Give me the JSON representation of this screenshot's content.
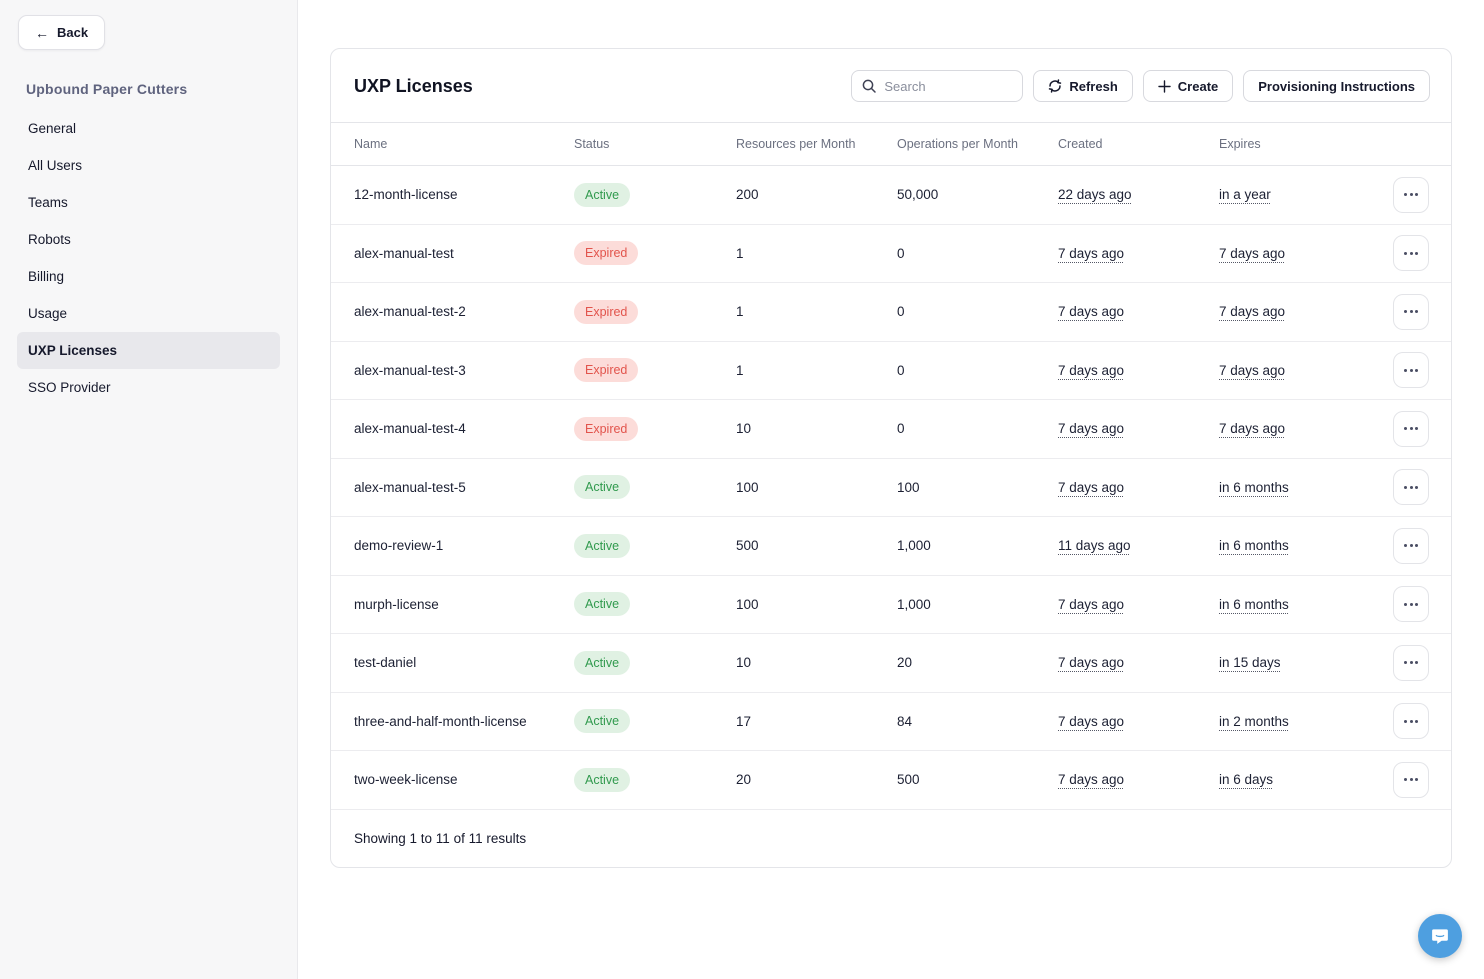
{
  "sidebar": {
    "back_label": "Back",
    "org_name": "Upbound Paper Cutters",
    "items": [
      {
        "label": "General",
        "active": false
      },
      {
        "label": "All Users",
        "active": false
      },
      {
        "label": "Teams",
        "active": false
      },
      {
        "label": "Robots",
        "active": false
      },
      {
        "label": "Billing",
        "active": false
      },
      {
        "label": "Usage",
        "active": false
      },
      {
        "label": "UXP Licenses",
        "active": true
      },
      {
        "label": "SSO Provider",
        "active": false
      }
    ]
  },
  "main": {
    "title": "UXP Licenses",
    "search": {
      "placeholder": "Search",
      "value": ""
    },
    "buttons": {
      "refresh": "Refresh",
      "create": "Create",
      "provisioning": "Provisioning Instructions"
    },
    "table": {
      "columns": [
        "Name",
        "Status",
        "Resources per Month",
        "Operations per Month",
        "Created",
        "Expires"
      ],
      "rows": [
        {
          "name": "12-month-license",
          "status": "Active",
          "resources": "200",
          "operations": "50,000",
          "created": "22 days ago",
          "expires": "in a year"
        },
        {
          "name": "alex-manual-test",
          "status": "Expired",
          "resources": "1",
          "operations": "0",
          "created": "7 days ago",
          "expires": "7 days ago"
        },
        {
          "name": "alex-manual-test-2",
          "status": "Expired",
          "resources": "1",
          "operations": "0",
          "created": "7 days ago",
          "expires": "7 days ago"
        },
        {
          "name": "alex-manual-test-3",
          "status": "Expired",
          "resources": "1",
          "operations": "0",
          "created": "7 days ago",
          "expires": "7 days ago"
        },
        {
          "name": "alex-manual-test-4",
          "status": "Expired",
          "resources": "10",
          "operations": "0",
          "created": "7 days ago",
          "expires": "7 days ago"
        },
        {
          "name": "alex-manual-test-5",
          "status": "Active",
          "resources": "100",
          "operations": "100",
          "created": "7 days ago",
          "expires": "in 6 months"
        },
        {
          "name": "demo-review-1",
          "status": "Active",
          "resources": "500",
          "operations": "1,000",
          "created": "11 days ago",
          "expires": "in 6 months"
        },
        {
          "name": "murph-license",
          "status": "Active",
          "resources": "100",
          "operations": "1,000",
          "created": "7 days ago",
          "expires": "in 6 months"
        },
        {
          "name": "test-daniel",
          "status": "Active",
          "resources": "10",
          "operations": "20",
          "created": "7 days ago",
          "expires": "in 15 days"
        },
        {
          "name": "three-and-half-month-license",
          "status": "Active",
          "resources": "17",
          "operations": "84",
          "created": "7 days ago",
          "expires": "in 2 months"
        },
        {
          "name": "two-week-license",
          "status": "Active",
          "resources": "20",
          "operations": "500",
          "created": "7 days ago",
          "expires": "in 6 days"
        }
      ],
      "footer": "Showing 1 to 11 of 11 results"
    }
  },
  "colors": {
    "active_badge_bg": "#e0f1e3",
    "active_badge_text": "#319a4e",
    "expired_badge_bg": "#fcdcd9",
    "expired_badge_text": "#e2544c",
    "org_name_text": "#5f637e",
    "chat_fab_bg": "#4e9fe0"
  }
}
